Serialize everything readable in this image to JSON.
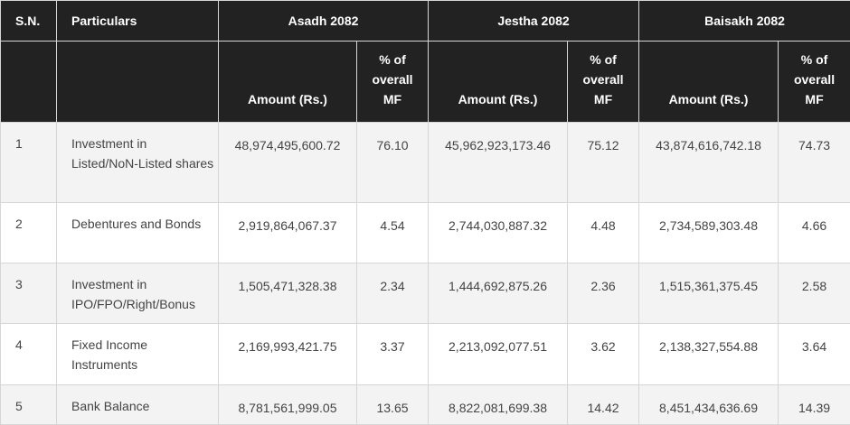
{
  "columns": {
    "sn": "S.N.",
    "particulars": "Particulars",
    "periods": [
      "Asadh 2082",
      "Jestha 2082",
      "Baisakh 2082"
    ],
    "amount": "Amount (Rs.)",
    "pct_lines": [
      "% of",
      "overall",
      "MF"
    ]
  },
  "rows": [
    {
      "sn": "1",
      "particulars": "Investment in Listed/NoN-Listed shares",
      "asadh_amount": "48,974,495,600.72",
      "asadh_pct": "76.10",
      "jestha_amount": "45,962,923,173.46",
      "jestha_pct": "75.12",
      "baisakh_amount": "43,874,616,742.18",
      "baisakh_pct": "74.73"
    },
    {
      "sn": "2",
      "particulars": "Debentures and Bonds",
      "asadh_amount": "2,919,864,067.37",
      "asadh_pct": "4.54",
      "jestha_amount": "2,744,030,887.32",
      "jestha_pct": "4.48",
      "baisakh_amount": "2,734,589,303.48",
      "baisakh_pct": "4.66"
    },
    {
      "sn": "3",
      "particulars": "Investment in IPO/FPO/Right/Bonus",
      "asadh_amount": "1,505,471,328.38",
      "asadh_pct": "2.34",
      "jestha_amount": "1,444,692,875.26",
      "jestha_pct": "2.36",
      "baisakh_amount": "1,515,361,375.45",
      "baisakh_pct": "2.58"
    },
    {
      "sn": "4",
      "particulars": "Fixed Income Instruments",
      "asadh_amount": "2,169,993,421.75",
      "asadh_pct": "3.37",
      "jestha_amount": "2,213,092,077.51",
      "jestha_pct": "3.62",
      "baisakh_amount": "2,138,327,554.88",
      "baisakh_pct": "3.64"
    },
    {
      "sn": "5",
      "particulars": "Bank Balance",
      "asadh_amount": "8,781,561,999.05",
      "asadh_pct": "13.65",
      "jestha_amount": "8,822,081,699.38",
      "jestha_pct": "14.42",
      "baisakh_amount": "8,451,434,636.69",
      "baisakh_pct": "14.39"
    }
  ]
}
